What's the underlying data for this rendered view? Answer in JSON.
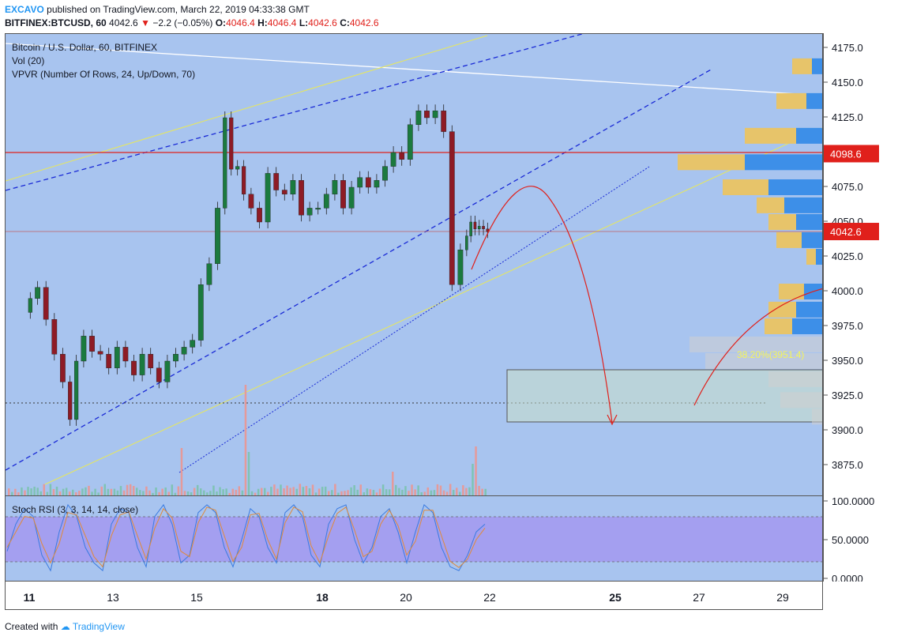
{
  "header": {
    "author": "EXCAVO",
    "published_text": "published on TradingView.com, March 22, 2019 04:33:38 GMT",
    "symbol": "BITFINEX:BTCUSD, 60",
    "last": "4042.6",
    "change": "−2.2 (−0.05%)",
    "o_label": "O:",
    "o": "4046.4",
    "h_label": "H:",
    "h": "4046.4",
    "l_label": "L:",
    "l": "4042.6",
    "c_label": "C:",
    "c": "4042.6"
  },
  "legend": {
    "title": "Bitcoin / U.S. Dollar, 60, BITFINEX",
    "vol": "Vol (20)",
    "vpvr": "VPVR (Number Of Rows, 24, Up/Down, 70)",
    "rsi": "Stoch RSI (3, 3, 14, 14, close)"
  },
  "price_axis": {
    "ticks": [
      "4175.0",
      "4150.0",
      "4125.0",
      "4075.0",
      "4050.0",
      "4025.0",
      "4000.0",
      "3975.0",
      "3950.0",
      "3925.0",
      "3900.0",
      "3875.0"
    ],
    "label_red": "4098.6",
    "label_current": "4042.6"
  },
  "rsi_axis": {
    "ticks": [
      "100.0000",
      "50.0000",
      "0.0000"
    ]
  },
  "fib_label": "38.20%(3951.4)",
  "footer": {
    "created_with": "Created with",
    "brand": "TradingView"
  },
  "colors": {
    "up": "#1b7a3e",
    "down": "#8e1b25",
    "red_line": "#e0201b",
    "blue_label": "#e0201b"
  },
  "chart_data": {
    "type": "line",
    "title": "Bitcoin / U.S. Dollar, 60, BITFINEX",
    "xlabel": "",
    "ylabel": "",
    "x_ticks": [
      "11",
      "13",
      "15",
      "18",
      "20",
      "22",
      "25",
      "27",
      "29"
    ],
    "ylim": [
      3860,
      4190
    ],
    "series": [
      {
        "name": "",
        "x": [
          10.95,
          11.1,
          11.3,
          11.5,
          11.7,
          11.9,
          12.05,
          12.2,
          12.4,
          12.6,
          12.8,
          13.0,
          13.2,
          13.4,
          13.6,
          13.8,
          14.0,
          14.2,
          14.4,
          14.6,
          14.8,
          15.0,
          15.2,
          15.4,
          15.6,
          15.75,
          15.9,
          16.05,
          16.2,
          16.4,
          16.6,
          16.8,
          17.0,
          17.2,
          17.4,
          17.6,
          17.8,
          18.0,
          18.2,
          18.4,
          18.6,
          18.8,
          19.0,
          19.2,
          19.4,
          19.6,
          19.8,
          20.0,
          20.2,
          20.4,
          20.6,
          20.8,
          21.0,
          21.2,
          21.4,
          21.5,
          21.6,
          21.7,
          21.8,
          21.9,
          22.0
        ],
        "values": [
          3985,
          3995,
          4003,
          3980,
          3955,
          3935,
          3908,
          3950,
          3968,
          3957,
          3955,
          3945,
          3960,
          3950,
          3940,
          3955,
          3945,
          3935,
          3950,
          3955,
          3960,
          3965,
          4005,
          4020,
          4060,
          4125,
          4088,
          4090,
          4070,
          4060,
          4050,
          4085,
          4073,
          4070,
          4080,
          4055,
          4060,
          4060,
          4070,
          4080,
          4060,
          4075,
          4082,
          4075,
          4080,
          4090,
          4100,
          4095,
          4120,
          4130,
          4125,
          4130,
          4115,
          4005,
          4030,
          4040,
          4050,
          4045,
          4047,
          4045,
          4043
        ]
      }
    ],
    "rsi": {
      "k": [
        35,
        70,
        90,
        80,
        30,
        10,
        60,
        95,
        80,
        40,
        20,
        10,
        70,
        90,
        85,
        40,
        15,
        80,
        95,
        70,
        20,
        30,
        85,
        95,
        85,
        40,
        15,
        50,
        90,
        80,
        40,
        20,
        85,
        95,
        80,
        30,
        15,
        70,
        90,
        95,
        50,
        20,
        40,
        80,
        90,
        60,
        20,
        60,
        95,
        85,
        40,
        15,
        10,
        30,
        60,
        70
      ],
      "d": [
        40,
        60,
        80,
        78,
        45,
        20,
        45,
        85,
        82,
        55,
        28,
        15,
        55,
        82,
        86,
        55,
        25,
        65,
        90,
        78,
        35,
        28,
        72,
        92,
        88,
        55,
        22,
        40,
        82,
        84,
        50,
        25,
        72,
        92,
        86,
        42,
        20,
        55,
        84,
        92,
        62,
        28,
        35,
        70,
        88,
        68,
        30,
        48,
        88,
        88,
        55,
        22,
        14,
        25,
        50,
        65
      ]
    }
  }
}
